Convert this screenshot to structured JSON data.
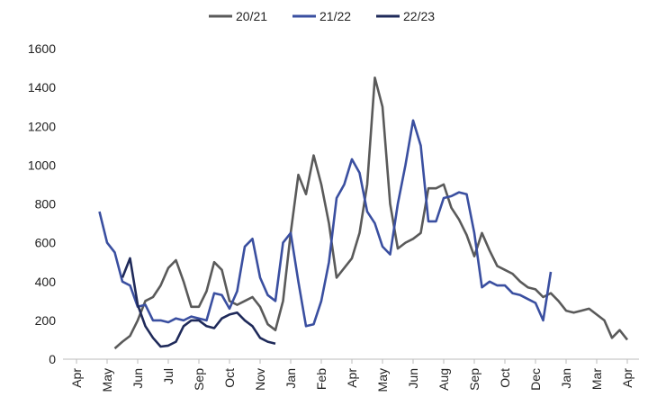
{
  "chart_data": {
    "type": "line",
    "categories": [
      "Apr",
      null,
      null,
      null,
      "May",
      null,
      null,
      null,
      "Jun",
      null,
      null,
      null,
      "Jul",
      null,
      null,
      null,
      "Sep",
      null,
      null,
      null,
      "Oct",
      null,
      null,
      null,
      "Nov",
      null,
      null,
      null,
      "Jan",
      null,
      null,
      null,
      "Feb",
      null,
      null,
      null,
      "Apr",
      null,
      null,
      null,
      "May",
      null,
      null,
      null,
      "Jun",
      null,
      null,
      null,
      "Aug",
      null,
      null,
      null,
      "Sep",
      null,
      null,
      null,
      "Oct",
      null,
      null,
      null,
      "Dec",
      null,
      null,
      null,
      "Jan",
      null,
      null,
      null,
      "Mar",
      null,
      null,
      null,
      "Apr"
    ],
    "series": [
      {
        "name": "20/21",
        "color": "#5a5a5a",
        "values": [
          null,
          null,
          null,
          null,
          null,
          55,
          90,
          120,
          200,
          300,
          320,
          380,
          470,
          510,
          400,
          270,
          270,
          350,
          500,
          460,
          300,
          280,
          300,
          320,
          270,
          180,
          150,
          300,
          650,
          950,
          850,
          1050,
          900,
          700,
          420,
          470,
          520,
          650,
          900,
          1450,
          1300,
          800,
          570,
          600,
          620,
          650,
          880,
          880,
          900,
          780,
          720,
          640,
          530,
          650,
          560,
          480,
          460,
          440,
          400,
          370,
          360,
          320,
          340,
          300,
          250,
          240,
          250,
          260,
          230,
          200,
          110,
          150,
          100
        ]
      },
      {
        "name": "21/22",
        "color": "#3a4fa0",
        "values": [
          null,
          null,
          null,
          760,
          600,
          550,
          400,
          380,
          270,
          280,
          200,
          200,
          190,
          210,
          200,
          220,
          210,
          200,
          340,
          330,
          260,
          350,
          580,
          620,
          420,
          330,
          300,
          600,
          650,
          400,
          170,
          180,
          300,
          500,
          830,
          900,
          1030,
          960,
          760,
          700,
          580,
          540,
          800,
          1000,
          1230,
          1100,
          710,
          710,
          830,
          840,
          860,
          850,
          650,
          370,
          400,
          380,
          380,
          340,
          330,
          310,
          290,
          200,
          450,
          null,
          null,
          null,
          null,
          null,
          null,
          null,
          null,
          null,
          null
        ]
      },
      {
        "name": "22/23",
        "color": "#1f2a5a",
        "values": [
          null,
          null,
          null,
          null,
          null,
          null,
          420,
          520,
          280,
          170,
          110,
          65,
          70,
          90,
          170,
          200,
          200,
          170,
          160,
          210,
          230,
          240,
          200,
          170,
          110,
          90,
          80,
          null,
          null,
          null,
          null,
          null,
          null,
          null,
          null,
          null,
          null,
          null,
          null,
          null,
          null,
          null,
          null,
          null,
          null,
          null,
          null,
          null,
          null,
          null,
          null,
          null,
          null,
          null,
          null,
          null,
          null,
          null,
          null,
          null,
          null,
          null,
          null,
          null,
          null,
          null,
          null,
          null,
          null,
          null,
          null,
          null,
          null
        ]
      }
    ],
    "ylim": [
      0,
      1600
    ],
    "yticks": [
      0,
      200,
      400,
      600,
      800,
      1000,
      1200,
      1400,
      1600
    ],
    "grid": false,
    "legend": "top"
  }
}
